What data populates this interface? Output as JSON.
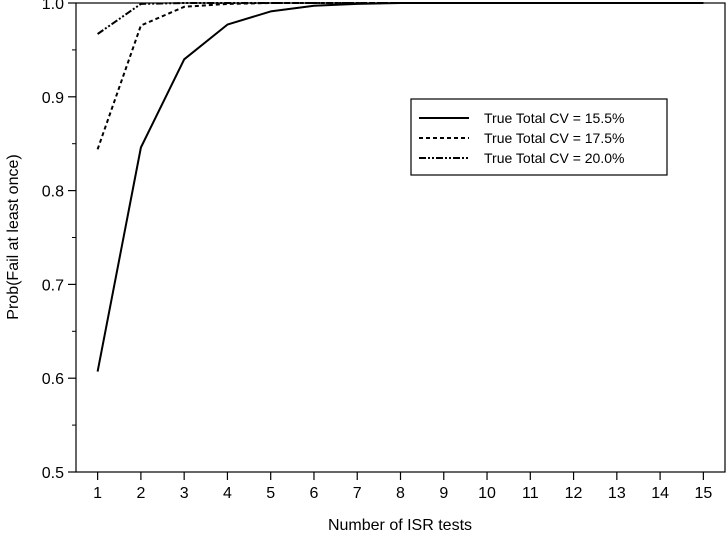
{
  "chart_data": {
    "type": "line",
    "title": "",
    "xlabel": "Number of ISR tests",
    "ylabel": "Prob(Fail at least once)",
    "x": [
      1,
      2,
      3,
      4,
      5,
      6,
      7,
      8,
      9,
      10,
      11,
      12,
      13,
      14,
      15
    ],
    "x_tick_labels": [
      "1",
      "2",
      "3",
      "4",
      "5",
      "6",
      "7",
      "8",
      "9",
      "10",
      "11",
      "12",
      "13",
      "14",
      "15"
    ],
    "xlim": [
      0.5,
      15.5
    ],
    "ylim": [
      0.5,
      1.0
    ],
    "y_ticks": [
      0.5,
      0.6,
      0.7,
      0.8,
      0.9,
      1.0
    ],
    "y_tick_labels": [
      "0.5",
      "0.6",
      "0.7",
      "0.8",
      "0.9",
      "1.0"
    ],
    "y_minor_ticks": [
      0.55,
      0.65,
      0.75,
      0.85,
      0.95
    ],
    "grid": false,
    "legend_position": "center-right",
    "series": [
      {
        "name": "True Total CV = 15.5%",
        "style": "solid",
        "color": "#000000",
        "values": [
          0.607,
          0.846,
          0.94,
          0.977,
          0.991,
          0.997,
          0.999,
          1.0,
          1.0,
          1.0,
          1.0,
          1.0,
          1.0,
          1.0,
          1.0
        ]
      },
      {
        "name": "True Total CV = 17.5%",
        "style": "dashed",
        "color": "#000000",
        "values": [
          0.844,
          0.976,
          0.996,
          0.999,
          1.0,
          1.0,
          1.0,
          1.0,
          1.0,
          1.0,
          1.0,
          1.0,
          1.0,
          1.0,
          1.0
        ]
      },
      {
        "name": "True Total CV = 20.0%",
        "style": "dashdot",
        "color": "#000000",
        "values": [
          0.967,
          0.999,
          1.0,
          1.0,
          1.0,
          1.0,
          1.0,
          1.0,
          1.0,
          1.0,
          1.0,
          1.0,
          1.0,
          1.0,
          1.0
        ]
      }
    ]
  }
}
